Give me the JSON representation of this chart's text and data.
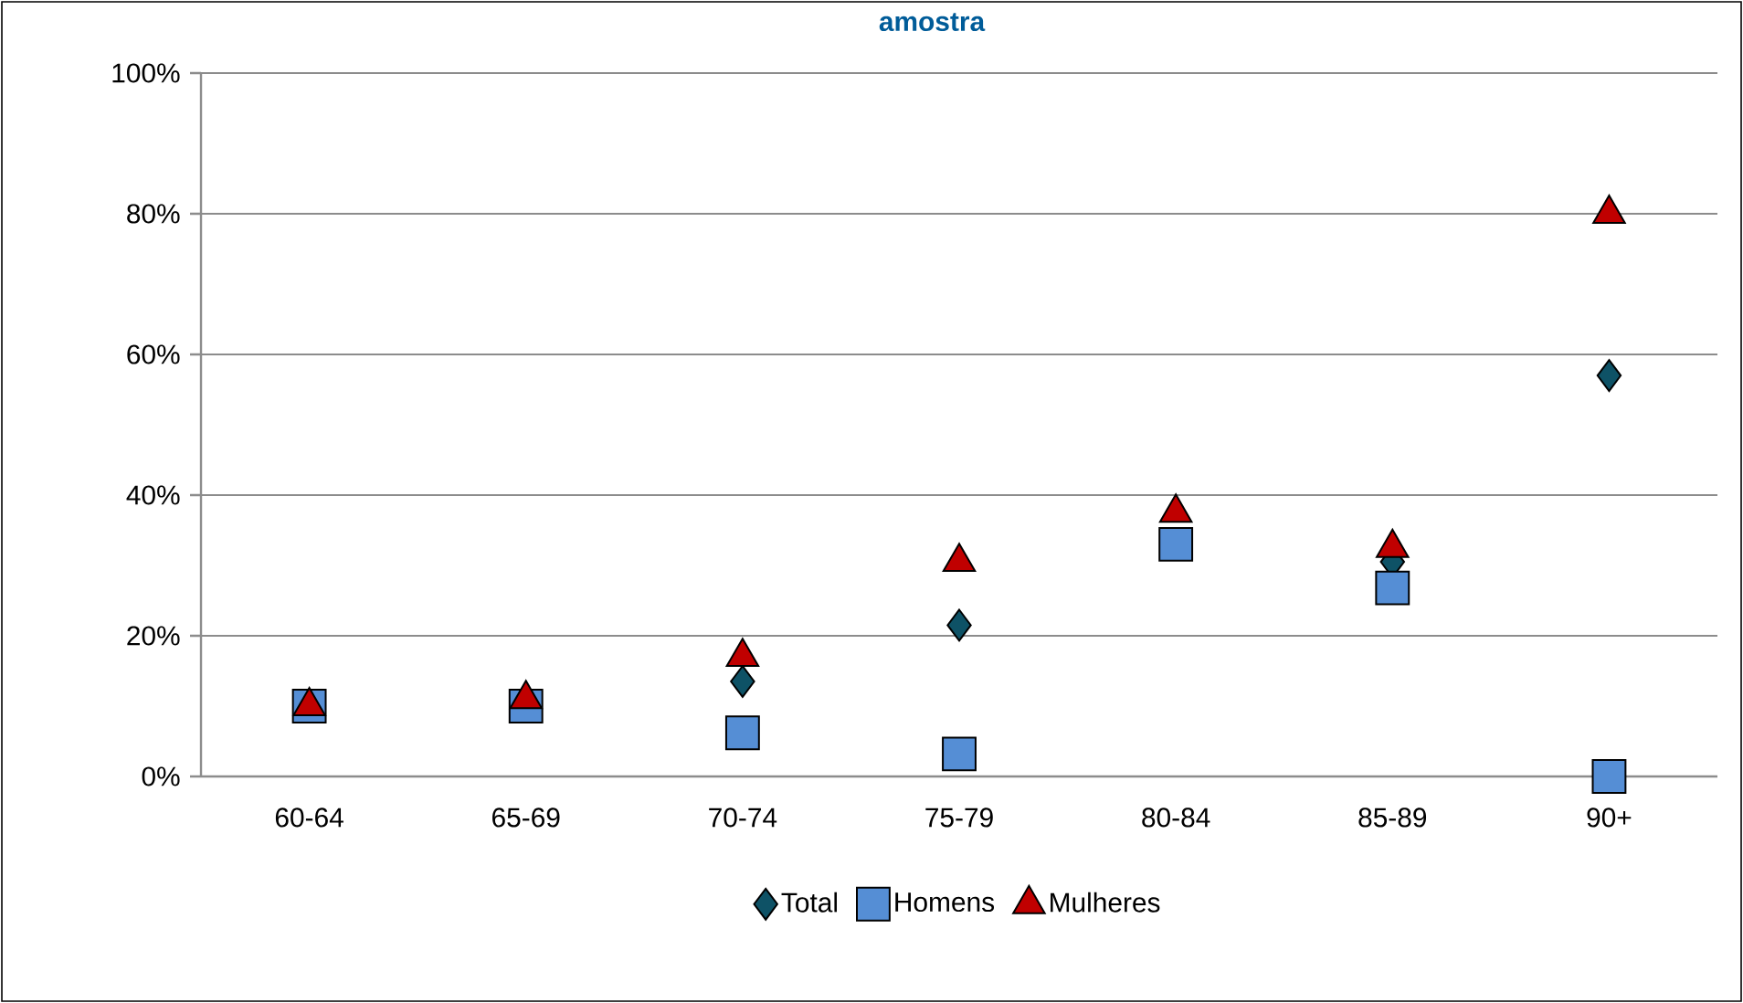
{
  "chart_data": {
    "type": "scatter",
    "title": "amostra",
    "categories": [
      "60-64",
      "65-69",
      "70-74",
      "75-79",
      "80-84",
      "85-89",
      "90+"
    ],
    "series": [
      {
        "name": "Total",
        "color": "#0e5266",
        "marker": "diamond",
        "values": [
          null,
          null,
          13.5,
          21.5,
          null,
          30.5,
          57
        ]
      },
      {
        "name": "Homens",
        "color": "#558ed5",
        "marker": "square",
        "values": [
          10,
          10,
          6.2,
          3.2,
          33,
          26.8,
          0
        ]
      },
      {
        "name": "Mulheres",
        "color": "#c00000",
        "marker": "triangle",
        "values": [
          10,
          11,
          17,
          30.5,
          37.5,
          32.5,
          80
        ]
      }
    ],
    "ylim": [
      0,
      100
    ],
    "yticks": [
      {
        "value": 0,
        "label": "0%"
      },
      {
        "value": 20,
        "label": "20%"
      },
      {
        "value": 40,
        "label": "40%"
      },
      {
        "value": 60,
        "label": "60%"
      },
      {
        "value": 80,
        "label": "80%"
      },
      {
        "value": 100,
        "label": "100%"
      }
    ],
    "grid": "y",
    "legend": "bottom"
  }
}
